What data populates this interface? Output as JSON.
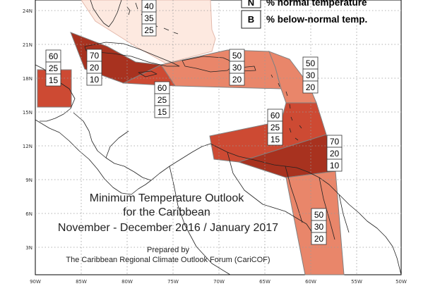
{
  "title": {
    "line1": "Minimum Temperature Outlook",
    "line2": "for the Caribbean",
    "line3": "November - December 2016 / January 2017"
  },
  "credit": {
    "line1": "Prepared by",
    "line2": "The Caribbean Regional Climate Outlook Forum (CariCOF)"
  },
  "legend": {
    "items": [
      {
        "key": "N",
        "label": "% normal temperature"
      },
      {
        "key": "B",
        "label": "% below-normal temp."
      }
    ]
  },
  "axes": {
    "lon_labels": [
      "90W",
      "85W",
      "80W",
      "75W",
      "70W",
      "65W",
      "60W",
      "55W",
      "50W"
    ],
    "lat_labels": [
      "3N",
      "6N",
      "9N",
      "12N",
      "15N",
      "18N",
      "21N",
      "24N"
    ]
  },
  "colors": {
    "above_40": "#fde9e0",
    "above_50": "#e9866a",
    "above_60": "#cd4a33",
    "above_70": "#a8321f",
    "boundary": "#808080",
    "grid": "#999999"
  },
  "regions": [
    {
      "id": "bahamas",
      "values": [
        "40",
        "35",
        "25"
      ]
    },
    {
      "id": "belize",
      "values": [
        "60",
        "25",
        "15"
      ]
    },
    {
      "id": "honduras-jamaica",
      "values": [
        "70",
        "20",
        "10"
      ]
    },
    {
      "id": "central-caribbean",
      "values": [
        "60",
        "25",
        "15"
      ]
    },
    {
      "id": "greater-antilles-east",
      "values": [
        "50",
        "30",
        "20"
      ]
    },
    {
      "id": "lesser-antilles-north",
      "values": [
        "50",
        "30",
        "20"
      ]
    },
    {
      "id": "eastern-caribbean-sea",
      "values": [
        "60",
        "25",
        "15"
      ]
    },
    {
      "id": "trinidad-tobago",
      "values": [
        "70",
        "20",
        "10"
      ]
    },
    {
      "id": "guianas",
      "values": [
        "50",
        "30",
        "20"
      ]
    }
  ]
}
